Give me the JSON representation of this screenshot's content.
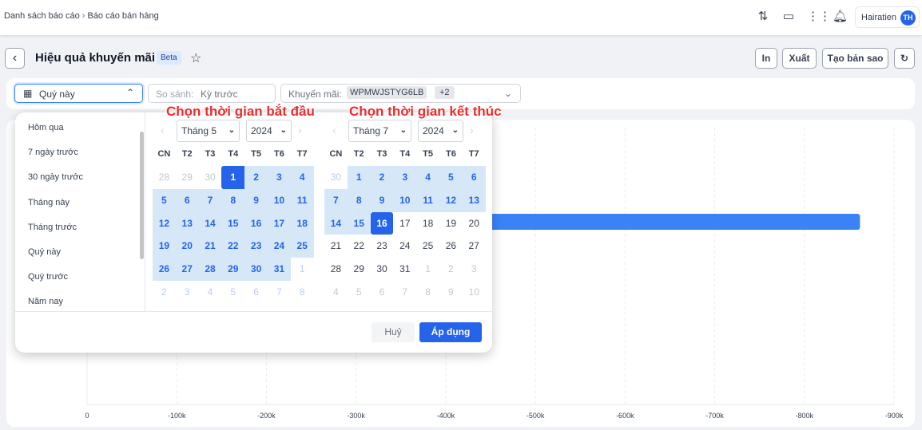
{
  "breadcrumb": [
    "Danh sách báo cáo",
    "Báo cáo bán hàng"
  ],
  "topbar": {
    "user_name": "Hairatien",
    "user_initials": "TH",
    "icons": [
      "exchange-icon",
      "feedback-icon",
      "apps-grid-icon",
      "bell-icon"
    ]
  },
  "page": {
    "title": "Hiệu quả khuyến mãi",
    "badge": "Beta",
    "actions": {
      "print": "In",
      "export": "Xuất",
      "copy": "Tạo bản sao"
    }
  },
  "filters": {
    "period": "Quý này",
    "compare_label": "So sánh:",
    "compare_value": "Kỳ trước",
    "promo_label": "Khuyến mãi:",
    "promo_chip": "WPMWJSTYG6LB",
    "promo_more": "+2"
  },
  "annotations": {
    "start": "Chọn thời gian bắt đầu",
    "end": "Chọn thời gian kết thúc"
  },
  "picker": {
    "presets": [
      "Hôm qua",
      "7 ngày trước",
      "30 ngày trước",
      "Tháng này",
      "Tháng trước",
      "Quý này",
      "Quý trước",
      "Năm nay"
    ],
    "weekdays": [
      "CN",
      "T2",
      "T3",
      "T4",
      "T5",
      "T6",
      "T7"
    ],
    "left": {
      "month": "Tháng 5",
      "year": "2024",
      "cells": [
        [
          "28",
          "o"
        ],
        [
          "29",
          "o"
        ],
        [
          "30",
          "o"
        ],
        [
          "1",
          "s"
        ],
        [
          "2",
          "r"
        ],
        [
          "3",
          "r"
        ],
        [
          "4",
          "r"
        ],
        [
          "5",
          "r"
        ],
        [
          "6",
          "r"
        ],
        [
          "7",
          "r"
        ],
        [
          "8",
          "r"
        ],
        [
          "9",
          "r"
        ],
        [
          "10",
          "r"
        ],
        [
          "11",
          "r"
        ],
        [
          "12",
          "r"
        ],
        [
          "13",
          "r"
        ],
        [
          "14",
          "r"
        ],
        [
          "15",
          "r"
        ],
        [
          "16",
          "r"
        ],
        [
          "17",
          "r"
        ],
        [
          "18",
          "r"
        ],
        [
          "19",
          "r"
        ],
        [
          "20",
          "r"
        ],
        [
          "21",
          "r"
        ],
        [
          "22",
          "r"
        ],
        [
          "23",
          "r"
        ],
        [
          "24",
          "r"
        ],
        [
          "25",
          "r"
        ],
        [
          "26",
          "r"
        ],
        [
          "27",
          "r"
        ],
        [
          "28",
          "r"
        ],
        [
          "29",
          "r"
        ],
        [
          "30",
          "r"
        ],
        [
          "31",
          "r"
        ],
        [
          "1",
          "ob"
        ],
        [
          "2",
          "ob"
        ],
        [
          "3",
          "ob"
        ],
        [
          "4",
          "ob"
        ],
        [
          "5",
          "ob"
        ],
        [
          "6",
          "ob"
        ],
        [
          "7",
          "ob"
        ],
        [
          "8",
          "ob"
        ]
      ]
    },
    "right": {
      "month": "Tháng 7",
      "year": "2024",
      "cells": [
        [
          "30",
          "ob"
        ],
        [
          "1",
          "r"
        ],
        [
          "2",
          "r"
        ],
        [
          "3",
          "r"
        ],
        [
          "4",
          "r"
        ],
        [
          "5",
          "r"
        ],
        [
          "6",
          "r"
        ],
        [
          "7",
          "r"
        ],
        [
          "8",
          "r"
        ],
        [
          "9",
          "r"
        ],
        [
          "10",
          "r"
        ],
        [
          "11",
          "r"
        ],
        [
          "12",
          "r"
        ],
        [
          "13",
          "r"
        ],
        [
          "14",
          "r"
        ],
        [
          "15",
          "r"
        ],
        [
          "16",
          "e"
        ],
        [
          "17",
          "n"
        ],
        [
          "18",
          "n"
        ],
        [
          "19",
          "n"
        ],
        [
          "20",
          "n"
        ],
        [
          "21",
          "n"
        ],
        [
          "22",
          "n"
        ],
        [
          "23",
          "n"
        ],
        [
          "24",
          "n"
        ],
        [
          "25",
          "n"
        ],
        [
          "26",
          "n"
        ],
        [
          "27",
          "n"
        ],
        [
          "28",
          "n"
        ],
        [
          "29",
          "n"
        ],
        [
          "30",
          "n"
        ],
        [
          "31",
          "n"
        ],
        [
          "1",
          "o"
        ],
        [
          "2",
          "o"
        ],
        [
          "3",
          "o"
        ],
        [
          "4",
          "o"
        ],
        [
          "5",
          "o"
        ],
        [
          "6",
          "o"
        ],
        [
          "7",
          "o"
        ],
        [
          "8",
          "o"
        ],
        [
          "9",
          "o"
        ],
        [
          "10",
          "o"
        ]
      ]
    },
    "cancel": "Huỷ",
    "apply": "Áp dụng"
  },
  "chart_data": {
    "type": "bar",
    "orientation": "horizontal",
    "values": [
      -862000
    ],
    "xlim": [
      0,
      -900000
    ],
    "x_ticks": [
      "0",
      "-100k",
      "-200k",
      "-300k",
      "-400k",
      "-500k",
      "-600k",
      "-700k",
      "-800k",
      "-900k"
    ],
    "grid": true,
    "color": "#3b82f6"
  },
  "colors": {
    "accent": "#2563eb",
    "range": "#d6e8f7"
  }
}
